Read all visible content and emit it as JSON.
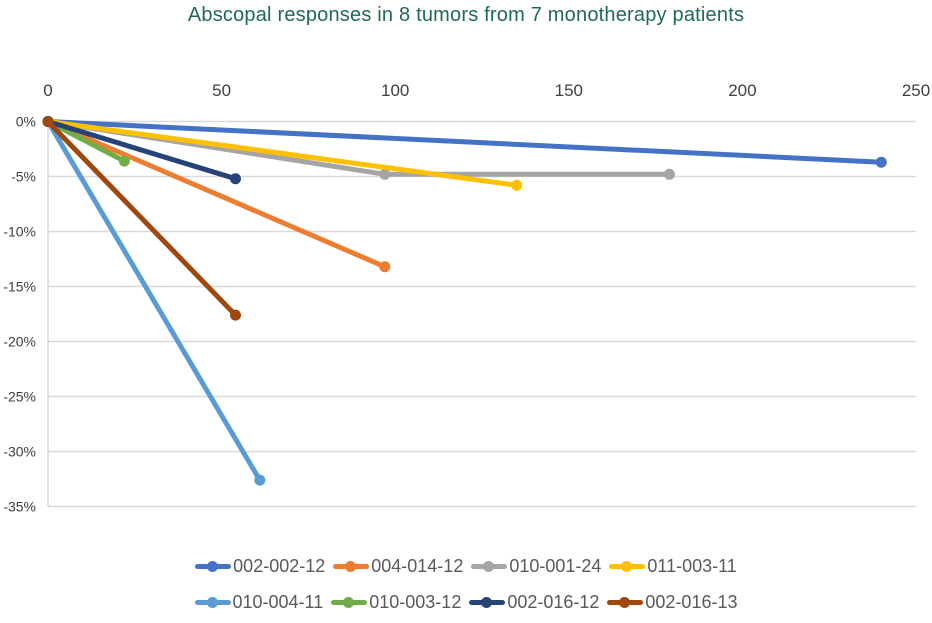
{
  "chart_data": {
    "type": "line",
    "title": "Abscopal responses in 8 tumors from 7 monotherapy patients",
    "title_color": "#1F6A52",
    "x_axis": {
      "position": "top",
      "min": 0,
      "max": 250,
      "ticks": [
        {
          "label": "0",
          "value": 0
        },
        {
          "label": "50",
          "value": 50
        },
        {
          "label": "100",
          "value": 100
        },
        {
          "label": "150",
          "value": 150
        },
        {
          "label": "200",
          "value": 200
        },
        {
          "label": "250",
          "value": 250
        }
      ]
    },
    "y_axis": {
      "position": "left",
      "min": -35,
      "max": 0,
      "unit": "%",
      "ticks": [
        {
          "label": "0%",
          "value": 0
        },
        {
          "label": "-5%",
          "value": -5
        },
        {
          "label": "-10%",
          "value": -10
        },
        {
          "label": "-15%",
          "value": -15
        },
        {
          "label": "-20%",
          "value": -20
        },
        {
          "label": "-25%",
          "value": -25
        },
        {
          "label": "-30%",
          "value": -30
        },
        {
          "label": "-35%",
          "value": -35
        }
      ]
    },
    "grid": {
      "horizontal": true,
      "vertical": false,
      "color": "#D9D9D9"
    },
    "axis_label_color": "#404040",
    "legend_position": "bottom",
    "series": [
      {
        "name": "002-002-12",
        "color": "#4472C4",
        "points": [
          [
            0,
            0
          ],
          [
            240,
            -3.7
          ]
        ]
      },
      {
        "name": "004-014-12",
        "color": "#ED7D31",
        "points": [
          [
            0,
            0
          ],
          [
            97,
            -13.2
          ]
        ]
      },
      {
        "name": "010-001-24",
        "color": "#A5A5A5",
        "points": [
          [
            0,
            0
          ],
          [
            97,
            -4.8
          ],
          [
            179,
            -4.8
          ]
        ]
      },
      {
        "name": "011-003-11",
        "color": "#FFC000",
        "points": [
          [
            0,
            0
          ],
          [
            135,
            -5.8
          ]
        ]
      },
      {
        "name": "010-004-11",
        "color": "#5B9BD5",
        "points": [
          [
            0,
            0
          ],
          [
            61,
            -32.6
          ]
        ]
      },
      {
        "name": "010-003-12",
        "color": "#70AD47",
        "points": [
          [
            0,
            0
          ],
          [
            22,
            -3.6
          ]
        ]
      },
      {
        "name": "002-016-12",
        "color": "#264478",
        "points": [
          [
            0,
            0
          ],
          [
            54,
            -5.2
          ]
        ]
      },
      {
        "name": "002-016-13",
        "color": "#9E480E",
        "points": [
          [
            0,
            0
          ],
          [
            54,
            -17.6
          ]
        ]
      }
    ],
    "legend_rows": [
      [
        "002-002-12",
        "004-014-12",
        "010-001-24",
        "011-003-11"
      ],
      [
        "010-004-11",
        "010-003-12",
        "002-016-12",
        "002-016-13"
      ]
    ],
    "legend_text_color": "#595959"
  }
}
